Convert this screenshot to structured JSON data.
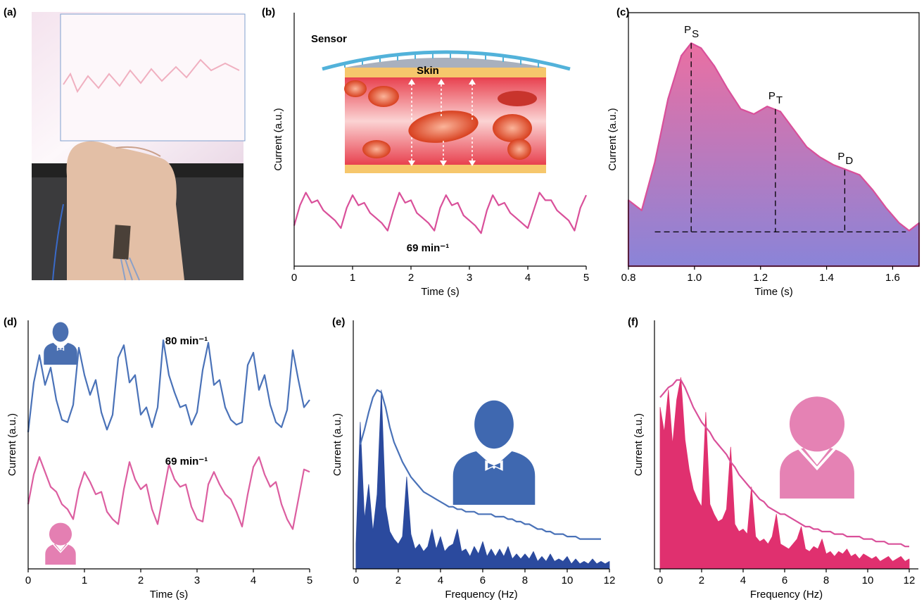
{
  "chart_data": [
    {
      "type": "image",
      "label": "(a)"
    },
    {
      "type": "line",
      "label": "(b)",
      "xlabel": "Time (s)",
      "ylabel": "Current (a.u.)",
      "color": "#d9509a",
      "xlim": [
        0,
        5
      ],
      "ylim": [
        0,
        10
      ],
      "xticks": [
        0,
        1,
        2,
        3,
        4,
        5
      ],
      "frame": false,
      "x": [
        0,
        0.1,
        0.2,
        0.3,
        0.4,
        0.5,
        0.6,
        0.7,
        0.8,
        0.9,
        1,
        1.1,
        1.2,
        1.3,
        1.4,
        1.5,
        1.6,
        1.7,
        1.8,
        1.9,
        2,
        2.1,
        2.2,
        2.3,
        2.4,
        2.5,
        2.6,
        2.7,
        2.8,
        2.9,
        3,
        3.1,
        3.2,
        3.3,
        3.4,
        3.5,
        3.6,
        3.7,
        3.8,
        3.9,
        4,
        4.1,
        4.2,
        4.3,
        4.4,
        4.5,
        4.6,
        4.7,
        4.8,
        4.9,
        5
      ],
      "values": [
        1.6,
        2.4,
        2.9,
        2.5,
        2.6,
        2.2,
        2.0,
        1.8,
        1.5,
        2.3,
        2.8,
        2.4,
        2.5,
        2.1,
        1.9,
        1.7,
        1.4,
        2.2,
        2.9,
        2.5,
        2.6,
        2.1,
        1.9,
        1.7,
        1.4,
        2.3,
        2.8,
        2.4,
        2.5,
        2.0,
        1.8,
        1.6,
        1.3,
        2.2,
        2.8,
        2.4,
        2.5,
        2.1,
        1.9,
        1.7,
        1.5,
        2.2,
        2.9,
        2.6,
        2.6,
        2.2,
        2.0,
        1.8,
        1.4,
        2.3,
        2.8
      ],
      "annotations": [
        {
          "text": "Sensor"
        },
        {
          "text": "Skin"
        },
        {
          "text": "69 min⁻¹"
        }
      ]
    },
    {
      "type": "area",
      "label": "(c)",
      "xlabel": "Time (s)",
      "ylabel": "Current (a.u.)",
      "color": "#d9509a",
      "gradient": [
        "#ea6fa2",
        "#8a84d8"
      ],
      "xlim": [
        0.8,
        1.68
      ],
      "ylim": [
        0,
        10
      ],
      "xticks": [
        0.8,
        {
          "value": 1,
          "label": "1.0"
        },
        1.2,
        1.4,
        1.6
      ],
      "frame": true,
      "x": [
        0.8,
        0.84,
        0.88,
        0.92,
        0.96,
        0.99,
        1.02,
        1.06,
        1.1,
        1.14,
        1.18,
        1.22,
        1.26,
        1.3,
        1.34,
        1.38,
        1.42,
        1.46,
        1.5,
        1.54,
        1.58,
        1.62,
        1.65,
        1.68
      ],
      "values": [
        2.6,
        2.2,
        4.1,
        6.6,
        8.3,
        8.8,
        8.6,
        7.9,
        7.0,
        6.2,
        6.0,
        6.3,
        6.1,
        5.4,
        4.7,
        4.3,
        4.0,
        3.8,
        3.6,
        3.0,
        2.3,
        1.7,
        1.4,
        1.7
      ],
      "markers": [
        {
          "text": "P",
          "subscript": "S",
          "x": 0.99,
          "y": 8.8
        },
        {
          "text": "P",
          "subscript": "T",
          "x": 1.245,
          "y": 6.2
        },
        {
          "text": "P",
          "subscript": "D",
          "x": 1.455,
          "y": 3.8
        }
      ],
      "baseline": {
        "y": 1.35,
        "x_start": 0.88,
        "x_end": 1.64
      }
    },
    {
      "type": "line",
      "label": "(d)",
      "xlabel": "Time (s)",
      "ylabel": "Current (a.u.)",
      "xlim": [
        0,
        5
      ],
      "ylim": [
        0,
        10
      ],
      "xticks": [
        0,
        1,
        2,
        3,
        4,
        5
      ],
      "frame": false,
      "x": [
        0,
        0.1,
        0.2,
        0.3,
        0.4,
        0.5,
        0.6,
        0.7,
        0.8,
        0.9,
        1,
        1.1,
        1.2,
        1.3,
        1.4,
        1.5,
        1.6,
        1.7,
        1.8,
        1.9,
        2,
        2.1,
        2.2,
        2.3,
        2.4,
        2.5,
        2.6,
        2.7,
        2.8,
        2.9,
        3,
        3.1,
        3.2,
        3.3,
        3.4,
        3.5,
        3.6,
        3.7,
        3.8,
        3.9,
        4,
        4.1,
        4.2,
        4.3,
        4.4,
        4.5,
        4.6,
        4.7,
        4.8,
        4.9,
        5
      ],
      "series": [
        {
          "color": "#4a72b8",
          "values": [
            5.5,
            7.5,
            8.6,
            7.4,
            8.1,
            6.8,
            6.0,
            5.9,
            6.6,
            8.9,
            7.8,
            7.0,
            7.6,
            6.3,
            5.6,
            6.2,
            8.5,
            9.0,
            7.5,
            7.8,
            6.2,
            6.5,
            5.7,
            6.5,
            9.2,
            7.8,
            7.1,
            6.5,
            6.6,
            5.8,
            6.3,
            8.0,
            9.1,
            7.4,
            7.6,
            6.5,
            6.0,
            5.8,
            5.9,
            8.2,
            8.7,
            7.2,
            7.8,
            6.6,
            5.9,
            5.7,
            6.4,
            8.8,
            7.6,
            6.5,
            6.8
          ]
        },
        {
          "color": "#dc5ea0",
          "values": [
            2.6,
            3.8,
            4.5,
            3.9,
            3.3,
            3.1,
            2.6,
            2.4,
            2.0,
            3.2,
            3.9,
            3.5,
            3.0,
            3.1,
            2.3,
            2.0,
            1.8,
            3.2,
            4.3,
            3.6,
            3.2,
            3.4,
            2.4,
            1.8,
            3.0,
            4.2,
            3.6,
            3.3,
            3.4,
            2.5,
            2.0,
            1.9,
            3.4,
            3.9,
            3.4,
            3.0,
            2.8,
            2.3,
            1.7,
            3.0,
            4.1,
            4.5,
            3.8,
            3.3,
            3.5,
            2.6,
            2.0,
            1.6,
            2.8,
            4.0,
            3.9
          ]
        }
      ],
      "annotations": [
        {
          "text": "80 min⁻¹"
        },
        {
          "text": "69 min⁻¹"
        }
      ]
    },
    {
      "type": "line",
      "label": "(e)",
      "xlabel": "Frequency (Hz)",
      "ylabel": "Current (a.u.)",
      "xlim": [
        -0.13,
        12
      ],
      "ylim": [
        0,
        10
      ],
      "xticks": [
        0,
        2,
        4,
        6,
        8,
        10,
        12
      ],
      "frame": false,
      "x": [
        0,
        0.2,
        0.4,
        0.6,
        0.8,
        1,
        1.2,
        1.4,
        1.6,
        1.8,
        2,
        2.2,
        2.4,
        2.6,
        2.8,
        3,
        3.2,
        3.4,
        3.6,
        3.8,
        4,
        4.2,
        4.4,
        4.6,
        4.8,
        5,
        5.2,
        5.4,
        5.6,
        5.8,
        6,
        6.2,
        6.4,
        6.6,
        6.8,
        7,
        7.2,
        7.4,
        7.6,
        7.8,
        8,
        8.2,
        8.4,
        8.6,
        8.8,
        9,
        9.2,
        9.4,
        9.6,
        9.8,
        10,
        10.2,
        10.4,
        10.6,
        10.8,
        11,
        11.2,
        11.4,
        11.6,
        11.8,
        12
      ],
      "series": [
        {
          "color": "#2b4a9e",
          "fill": true,
          "values": [
            1.0,
            5.9,
            2.0,
            3.4,
            1.5,
            3.0,
            7.2,
            2.5,
            1.5,
            1.2,
            1.0,
            1.3,
            3.7,
            1.4,
            0.8,
            1.0,
            0.7,
            0.9,
            1.6,
            0.8,
            1.3,
            0.7,
            0.9,
            1.0,
            1.6,
            0.7,
            0.8,
            0.5,
            0.9,
            0.6,
            1.1,
            0.5,
            0.8,
            0.5,
            0.8,
            0.5,
            0.9,
            0.4,
            0.6,
            0.4,
            0.6,
            0.4,
            0.7,
            0.3,
            0.5,
            0.3,
            0.6,
            0.3,
            0.4,
            0.3,
            0.5,
            0.2,
            0.4,
            0.2,
            0.3,
            0.2,
            0.4,
            0.2,
            0.3,
            0.2,
            0.3
          ]
        },
        {
          "color": "#4a72b8",
          "values": [
            null,
            5.0,
            5.6,
            6.3,
            6.9,
            7.2,
            7.1,
            6.5,
            5.7,
            5.1,
            4.7,
            4.3,
            4.0,
            3.7,
            3.5,
            3.3,
            3.1,
            3.0,
            2.9,
            2.8,
            2.7,
            2.6,
            2.5,
            2.5,
            2.4,
            2.4,
            2.3,
            2.3,
            2.3,
            2.2,
            2.2,
            2.2,
            2.2,
            2.1,
            2.1,
            2.1,
            2.0,
            2.0,
            1.9,
            1.9,
            1.8,
            1.8,
            1.7,
            1.6,
            1.6,
            1.5,
            1.5,
            1.4,
            1.4,
            1.4,
            1.3,
            1.3,
            1.3,
            1.2,
            1.2,
            1.2,
            1.2,
            1.2,
            1.2,
            null,
            null
          ]
        }
      ]
    },
    {
      "type": "line",
      "label": "(f)",
      "xlabel": "Frequency (Hz)",
      "ylabel": "Current (a.u.)",
      "xlim": [
        -0.27,
        12.44
      ],
      "ylim": [
        0,
        10
      ],
      "xticks": [
        0,
        2,
        4,
        6,
        8,
        10,
        12
      ],
      "frame": false,
      "x": [
        0,
        0.2,
        0.4,
        0.6,
        0.8,
        1,
        1.2,
        1.4,
        1.6,
        1.8,
        2,
        2.2,
        2.4,
        2.6,
        2.8,
        3,
        3.2,
        3.4,
        3.6,
        3.8,
        4,
        4.2,
        4.4,
        4.6,
        4.8,
        5,
        5.2,
        5.4,
        5.6,
        5.8,
        6,
        6.2,
        6.4,
        6.6,
        6.8,
        7,
        7.2,
        7.4,
        7.6,
        7.8,
        8,
        8.2,
        8.4,
        8.6,
        8.8,
        9,
        9.2,
        9.4,
        9.6,
        9.8,
        10,
        10.2,
        10.4,
        10.6,
        10.8,
        11,
        11.2,
        11.4,
        11.6,
        11.8,
        12
      ],
      "series": [
        {
          "color": "#e0306f",
          "fill": true,
          "values": [
            6.5,
            5.5,
            7.2,
            5.0,
            6.8,
            7.7,
            5.2,
            4.0,
            3.2,
            2.8,
            2.5,
            6.3,
            2.6,
            2.2,
            1.9,
            2.0,
            2.4,
            4.9,
            1.8,
            1.5,
            1.6,
            1.4,
            3.3,
            1.3,
            1.1,
            1.2,
            1.0,
            1.3,
            2.2,
            1.0,
            0.9,
            0.8,
            1.0,
            1.2,
            1.7,
            0.8,
            0.7,
            0.9,
            0.8,
            1.2,
            0.6,
            0.7,
            0.5,
            0.7,
            0.6,
            0.8,
            0.5,
            0.6,
            0.4,
            0.6,
            0.5,
            0.4,
            0.5,
            0.3,
            0.4,
            0.5,
            0.3,
            0.4,
            0.5,
            0.3,
            0.4
          ]
        },
        {
          "color": "#d9509a",
          "values": [
            6.9,
            7.1,
            7.3,
            7.4,
            7.6,
            7.6,
            7.3,
            6.9,
            6.5,
            6.2,
            5.9,
            5.7,
            5.5,
            5.2,
            5.0,
            4.8,
            4.6,
            4.3,
            4.1,
            3.8,
            3.6,
            3.4,
            3.2,
            3.0,
            2.8,
            2.7,
            2.5,
            2.4,
            2.3,
            2.2,
            2.2,
            2.1,
            2.0,
            1.9,
            1.8,
            1.7,
            1.7,
            1.6,
            1.6,
            1.5,
            1.5,
            1.5,
            1.4,
            1.4,
            1.4,
            1.3,
            1.3,
            1.3,
            1.3,
            1.2,
            1.2,
            1.2,
            1.1,
            1.1,
            1.1,
            1.0,
            1.0,
            1.0,
            1.0,
            0.9,
            0.9
          ]
        }
      ]
    }
  ]
}
